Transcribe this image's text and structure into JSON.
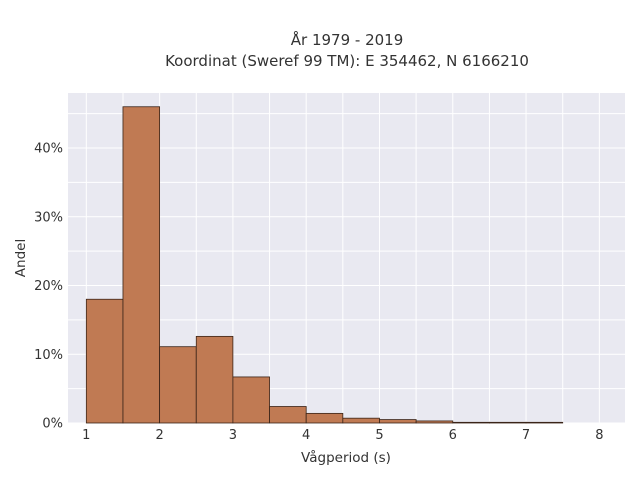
{
  "chart_data": {
    "type": "bar",
    "title_lines": [
      "År 1979 - 2019",
      "Koordinat (Sweref 99 TM): E 354462, N 6166210"
    ],
    "xlabel": "Vågperiod (s)",
    "ylabel": "Andel",
    "x_ticks": [
      "1",
      "2",
      "3",
      "4",
      "5",
      "6",
      "7",
      "8"
    ],
    "y_ticks": [
      "0%",
      "10%",
      "20%",
      "30%",
      "40%"
    ],
    "xlim": [
      0.75,
      8.35
    ],
    "ylim": [
      0,
      48
    ],
    "grid": true,
    "legend": "none",
    "bin_width": 0.5,
    "bins": [
      {
        "start": 1.0,
        "value": 18.0
      },
      {
        "start": 1.5,
        "value": 46.0
      },
      {
        "start": 2.0,
        "value": 11.1
      },
      {
        "start": 2.5,
        "value": 12.6
      },
      {
        "start": 3.0,
        "value": 6.7
      },
      {
        "start": 3.5,
        "value": 2.4
      },
      {
        "start": 4.0,
        "value": 1.4
      },
      {
        "start": 4.5,
        "value": 0.7
      },
      {
        "start": 5.0,
        "value": 0.5
      },
      {
        "start": 5.5,
        "value": 0.3
      },
      {
        "start": 6.0,
        "value": 0.1
      },
      {
        "start": 6.5,
        "value": 0.1
      },
      {
        "start": 7.0,
        "value": 0.1
      }
    ],
    "colors": {
      "bar_fill": "#c07a53",
      "bar_stroke": "#3a2418",
      "plot_bg": "#e9e9f1",
      "grid": "#ffffff"
    }
  }
}
